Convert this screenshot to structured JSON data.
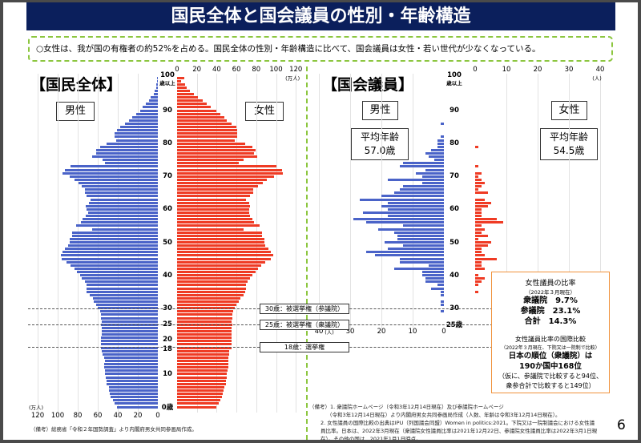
{
  "title": "国民全体と国会議員の性別・年齢構造",
  "summary": "○女性は、我が国の有権者の約52%を占める。国民全体の性別・年齢構造に比べて、国会議員は女性・若い世代が少なくなっている。",
  "colors": {
    "male": "#4a63c8",
    "female": "#ef3b24",
    "header": "#0b1f5c",
    "accent_green": "#8cc63f",
    "accent_orange": "#f0923c"
  },
  "chart_data": [
    {
      "type": "bar",
      "title": "【国民全体】",
      "orientation": "horizontal-pyramid",
      "unit": "(万人)",
      "xlim": [
        0,
        120
      ],
      "ticks": [
        "0",
        "20",
        "40",
        "60",
        "80",
        "100",
        "120"
      ],
      "male_label": "男性",
      "female_label": "女性",
      "age_labels": {
        "a100": "100",
        "a100b": "歳以上",
        "a90": "90",
        "a80": "80",
        "a70": "70",
        "a60": "60",
        "a50": "50",
        "a40": "40",
        "a30": "30",
        "a25": "25",
        "a20": "20",
        "a18": "18",
        "a10": "10",
        "a0": "0歳"
      },
      "ages": "0-100",
      "male": [
        41,
        43,
        45,
        47,
        48,
        49,
        49,
        51,
        51,
        52,
        53,
        53,
        54,
        54,
        53,
        54,
        55,
        56,
        57,
        57,
        57,
        57,
        56,
        56,
        56,
        57,
        56,
        57,
        57,
        58,
        60,
        62,
        64,
        65,
        68,
        71,
        71,
        71,
        73,
        76,
        78,
        81,
        83,
        87,
        91,
        96,
        97,
        95,
        93,
        90,
        88,
        88,
        86,
        86,
        66,
        82,
        77,
        75,
        72,
        70,
        71,
        72,
        69,
        67,
        71,
        73,
        73,
        76,
        79,
        83,
        88,
        95,
        93,
        87,
        53,
        55,
        66,
        62,
        62,
        58,
        51,
        42,
        43,
        43,
        41,
        38,
        33,
        29,
        26,
        22,
        18,
        15,
        12,
        9,
        7,
        4,
        3,
        2,
        1.3,
        1,
        1
      ],
      "female": [
        40,
        42,
        44,
        45,
        46,
        47,
        48,
        49,
        49,
        50,
        50,
        51,
        52,
        52,
        52,
        52,
        53,
        53,
        55,
        55,
        55,
        55,
        55,
        55,
        55,
        56,
        55,
        56,
        56,
        57,
        58,
        60,
        62,
        64,
        67,
        69,
        70,
        70,
        71,
        74,
        76,
        79,
        82,
        85,
        89,
        95,
        97,
        95,
        92,
        89,
        88,
        88,
        86,
        86,
        67,
        83,
        78,
        76,
        74,
        73,
        73,
        74,
        73,
        70,
        74,
        77,
        77,
        82,
        87,
        91,
        98,
        107,
        106,
        100,
        62,
        67,
        81,
        78,
        79,
        76,
        69,
        58,
        61,
        61,
        61,
        60,
        55,
        50,
        48,
        44,
        40,
        34,
        30,
        26,
        21,
        17,
        13,
        10,
        8,
        4,
        7
      ]
    },
    {
      "type": "bar",
      "title": "【国会議員】",
      "orientation": "horizontal-pyramid",
      "unit": "(人)",
      "xlim": [
        0,
        40
      ],
      "ticks": [
        "0",
        "10",
        "20",
        "30",
        "40"
      ],
      "male_label": "男性",
      "female_label": "女性",
      "male_avg_label": "平均年齢",
      "male_avg": "57.0歳",
      "female_avg_label": "平均年齢",
      "female_avg": "54.5歳",
      "age_labels": {
        "a100": "100",
        "a100b": "歳以上",
        "a90": "90",
        "a80": "80",
        "a70": "70",
        "a60": "60",
        "a50": "50",
        "a40": "40",
        "a30": "30",
        "a25": "25歳"
      },
      "male": [
        [
          86,
          1
        ],
        [
          82,
          1
        ],
        [
          81,
          2
        ],
        [
          80,
          2
        ],
        [
          79,
          2
        ],
        [
          78,
          4
        ],
        [
          77,
          6
        ],
        [
          76,
          5
        ],
        [
          75,
          3
        ],
        [
          74,
          13
        ],
        [
          73,
          14
        ],
        [
          72,
          6
        ],
        [
          71,
          9
        ],
        [
          70,
          7
        ],
        [
          69,
          18
        ],
        [
          68,
          7
        ],
        [
          67,
          13
        ],
        [
          66,
          14
        ],
        [
          65,
          16
        ],
        [
          64,
          20
        ],
        [
          63,
          27
        ],
        [
          62,
          18
        ],
        [
          61,
          20
        ],
        [
          60,
          18
        ],
        [
          59,
          26
        ],
        [
          58,
          18
        ],
        [
          57,
          29
        ],
        [
          56,
          25
        ],
        [
          55,
          13
        ],
        [
          54,
          21
        ],
        [
          53,
          16
        ],
        [
          52,
          15
        ],
        [
          51,
          15
        ],
        [
          50,
          19
        ],
        [
          49,
          13
        ],
        [
          48,
          18
        ],
        [
          47,
          25
        ],
        [
          46,
          22
        ],
        [
          45,
          14
        ],
        [
          44,
          14
        ],
        [
          43,
          5
        ],
        [
          42,
          16
        ],
        [
          41,
          7
        ],
        [
          40,
          7
        ],
        [
          39,
          6
        ],
        [
          38,
          6
        ],
        [
          37,
          2
        ],
        [
          36,
          4
        ],
        [
          35,
          1
        ],
        [
          34,
          1
        ],
        [
          32,
          1
        ],
        [
          31,
          1
        ],
        [
          29,
          1
        ]
      ],
      "female": [
        [
          79,
          1
        ],
        [
          73,
          1
        ],
        [
          71,
          2
        ],
        [
          70,
          1
        ],
        [
          69,
          2
        ],
        [
          68,
          3
        ],
        [
          67,
          2
        ],
        [
          66,
          1
        ],
        [
          65,
          4
        ],
        [
          63,
          3
        ],
        [
          62,
          5
        ],
        [
          61,
          4
        ],
        [
          60,
          2
        ],
        [
          59,
          2
        ],
        [
          58,
          2
        ],
        [
          57,
          7
        ],
        [
          56,
          9
        ],
        [
          55,
          2
        ],
        [
          54,
          3
        ],
        [
          53,
          2
        ],
        [
          52,
          4
        ],
        [
          51,
          1
        ],
        [
          50,
          5
        ],
        [
          49,
          4
        ],
        [
          48,
          2
        ],
        [
          47,
          2
        ],
        [
          46,
          3
        ],
        [
          45,
          7
        ],
        [
          44,
          2
        ],
        [
          43,
          2
        ],
        [
          42,
          3
        ],
        [
          40,
          1
        ],
        [
          39,
          3
        ],
        [
          38,
          2
        ],
        [
          37,
          1
        ],
        [
          35,
          1
        ]
      ]
    }
  ],
  "election": {
    "a30": "30歳：被選挙権（参議院）",
    "a25": "25歳：被選挙権（衆議院）",
    "a18": "18歳：選挙権"
  },
  "ratio_box": {
    "title": "女性議員の比率",
    "date": "（2022年３月現在）",
    "lower": "衆議院　9.7%",
    "upper": "参議院　23.1%",
    "total": "合計　14.3%",
    "intl_title": "女性議員比率の国際比較",
    "intl_date": "（2022年３月現在、下院又は一院制で比較）",
    "rank1": "日本の順位（衆議院）は",
    "rank2": "190か国中168位",
    "note1": "（仮に、参議院で比較すると94位、",
    "note2": "衆参合計で比較すると149位）"
  },
  "notes": {
    "left": "（備考）総務省「令和２年国勢調査」より内閣府男女共同参画局作成。",
    "r1": "（備考）1. 衆議院ホームページ（令和3年12月14日現在）及び参議院ホームページ",
    "r2": "（令和3年12月14日現在）より内閣府男女共同参画局作成（人数、年齢は令和3年12月14日現在）。",
    "r3": "2. 女性議員の国際比較の出典はIPU（列国議会同盟）Women in politics:2021。下院又は一院制議会における女性議員比率。日本は、2022年3月現在（衆議院女性議員比率は2021年12月22日、参議院女性議員比率は2022年3月1日現在）。その他の国は、2021年1月1日時点。"
  },
  "page_number": "6"
}
